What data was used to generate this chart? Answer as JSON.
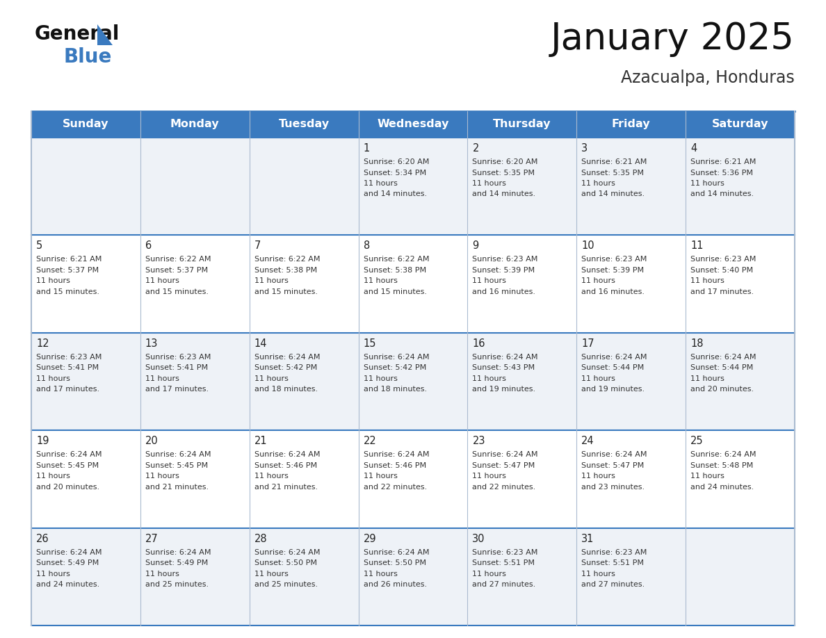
{
  "title": "January 2025",
  "subtitle": "Azacualpa, Honduras",
  "header_bg": "#3a7abf",
  "header_text": "#ffffff",
  "row_bg_even": "#eef2f7",
  "row_bg_odd": "#ffffff",
  "cell_border_color": "#3a7abf",
  "col_border_color": "#cccccc",
  "day_names": [
    "Sunday",
    "Monday",
    "Tuesday",
    "Wednesday",
    "Thursday",
    "Friday",
    "Saturday"
  ],
  "days": [
    {
      "day": 1,
      "col": 3,
      "row": 0,
      "sunrise": "6:20 AM",
      "sunset": "5:34 PM",
      "daylight": "11 hours and 14 minutes."
    },
    {
      "day": 2,
      "col": 4,
      "row": 0,
      "sunrise": "6:20 AM",
      "sunset": "5:35 PM",
      "daylight": "11 hours and 14 minutes."
    },
    {
      "day": 3,
      "col": 5,
      "row": 0,
      "sunrise": "6:21 AM",
      "sunset": "5:35 PM",
      "daylight": "11 hours and 14 minutes."
    },
    {
      "day": 4,
      "col": 6,
      "row": 0,
      "sunrise": "6:21 AM",
      "sunset": "5:36 PM",
      "daylight": "11 hours and 14 minutes."
    },
    {
      "day": 5,
      "col": 0,
      "row": 1,
      "sunrise": "6:21 AM",
      "sunset": "5:37 PM",
      "daylight": "11 hours and 15 minutes."
    },
    {
      "day": 6,
      "col": 1,
      "row": 1,
      "sunrise": "6:22 AM",
      "sunset": "5:37 PM",
      "daylight": "11 hours and 15 minutes."
    },
    {
      "day": 7,
      "col": 2,
      "row": 1,
      "sunrise": "6:22 AM",
      "sunset": "5:38 PM",
      "daylight": "11 hours and 15 minutes."
    },
    {
      "day": 8,
      "col": 3,
      "row": 1,
      "sunrise": "6:22 AM",
      "sunset": "5:38 PM",
      "daylight": "11 hours and 15 minutes."
    },
    {
      "day": 9,
      "col": 4,
      "row": 1,
      "sunrise": "6:23 AM",
      "sunset": "5:39 PM",
      "daylight": "11 hours and 16 minutes."
    },
    {
      "day": 10,
      "col": 5,
      "row": 1,
      "sunrise": "6:23 AM",
      "sunset": "5:39 PM",
      "daylight": "11 hours and 16 minutes."
    },
    {
      "day": 11,
      "col": 6,
      "row": 1,
      "sunrise": "6:23 AM",
      "sunset": "5:40 PM",
      "daylight": "11 hours and 17 minutes."
    },
    {
      "day": 12,
      "col": 0,
      "row": 2,
      "sunrise": "6:23 AM",
      "sunset": "5:41 PM",
      "daylight": "11 hours and 17 minutes."
    },
    {
      "day": 13,
      "col": 1,
      "row": 2,
      "sunrise": "6:23 AM",
      "sunset": "5:41 PM",
      "daylight": "11 hours and 17 minutes."
    },
    {
      "day": 14,
      "col": 2,
      "row": 2,
      "sunrise": "6:24 AM",
      "sunset": "5:42 PM",
      "daylight": "11 hours and 18 minutes."
    },
    {
      "day": 15,
      "col": 3,
      "row": 2,
      "sunrise": "6:24 AM",
      "sunset": "5:42 PM",
      "daylight": "11 hours and 18 minutes."
    },
    {
      "day": 16,
      "col": 4,
      "row": 2,
      "sunrise": "6:24 AM",
      "sunset": "5:43 PM",
      "daylight": "11 hours and 19 minutes."
    },
    {
      "day": 17,
      "col": 5,
      "row": 2,
      "sunrise": "6:24 AM",
      "sunset": "5:44 PM",
      "daylight": "11 hours and 19 minutes."
    },
    {
      "day": 18,
      "col": 6,
      "row": 2,
      "sunrise": "6:24 AM",
      "sunset": "5:44 PM",
      "daylight": "11 hours and 20 minutes."
    },
    {
      "day": 19,
      "col": 0,
      "row": 3,
      "sunrise": "6:24 AM",
      "sunset": "5:45 PM",
      "daylight": "11 hours and 20 minutes."
    },
    {
      "day": 20,
      "col": 1,
      "row": 3,
      "sunrise": "6:24 AM",
      "sunset": "5:45 PM",
      "daylight": "11 hours and 21 minutes."
    },
    {
      "day": 21,
      "col": 2,
      "row": 3,
      "sunrise": "6:24 AM",
      "sunset": "5:46 PM",
      "daylight": "11 hours and 21 minutes."
    },
    {
      "day": 22,
      "col": 3,
      "row": 3,
      "sunrise": "6:24 AM",
      "sunset": "5:46 PM",
      "daylight": "11 hours and 22 minutes."
    },
    {
      "day": 23,
      "col": 4,
      "row": 3,
      "sunrise": "6:24 AM",
      "sunset": "5:47 PM",
      "daylight": "11 hours and 22 minutes."
    },
    {
      "day": 24,
      "col": 5,
      "row": 3,
      "sunrise": "6:24 AM",
      "sunset": "5:47 PM",
      "daylight": "11 hours and 23 minutes."
    },
    {
      "day": 25,
      "col": 6,
      "row": 3,
      "sunrise": "6:24 AM",
      "sunset": "5:48 PM",
      "daylight": "11 hours and 24 minutes."
    },
    {
      "day": 26,
      "col": 0,
      "row": 4,
      "sunrise": "6:24 AM",
      "sunset": "5:49 PM",
      "daylight": "11 hours and 24 minutes."
    },
    {
      "day": 27,
      "col": 1,
      "row": 4,
      "sunrise": "6:24 AM",
      "sunset": "5:49 PM",
      "daylight": "11 hours and 25 minutes."
    },
    {
      "day": 28,
      "col": 2,
      "row": 4,
      "sunrise": "6:24 AM",
      "sunset": "5:50 PM",
      "daylight": "11 hours and 25 minutes."
    },
    {
      "day": 29,
      "col": 3,
      "row": 4,
      "sunrise": "6:24 AM",
      "sunset": "5:50 PM",
      "daylight": "11 hours and 26 minutes."
    },
    {
      "day": 30,
      "col": 4,
      "row": 4,
      "sunrise": "6:23 AM",
      "sunset": "5:51 PM",
      "daylight": "11 hours and 27 minutes."
    },
    {
      "day": 31,
      "col": 5,
      "row": 4,
      "sunrise": "6:23 AM",
      "sunset": "5:51 PM",
      "daylight": "11 hours and 27 minutes."
    }
  ],
  "num_rows": 5,
  "num_cols": 7
}
